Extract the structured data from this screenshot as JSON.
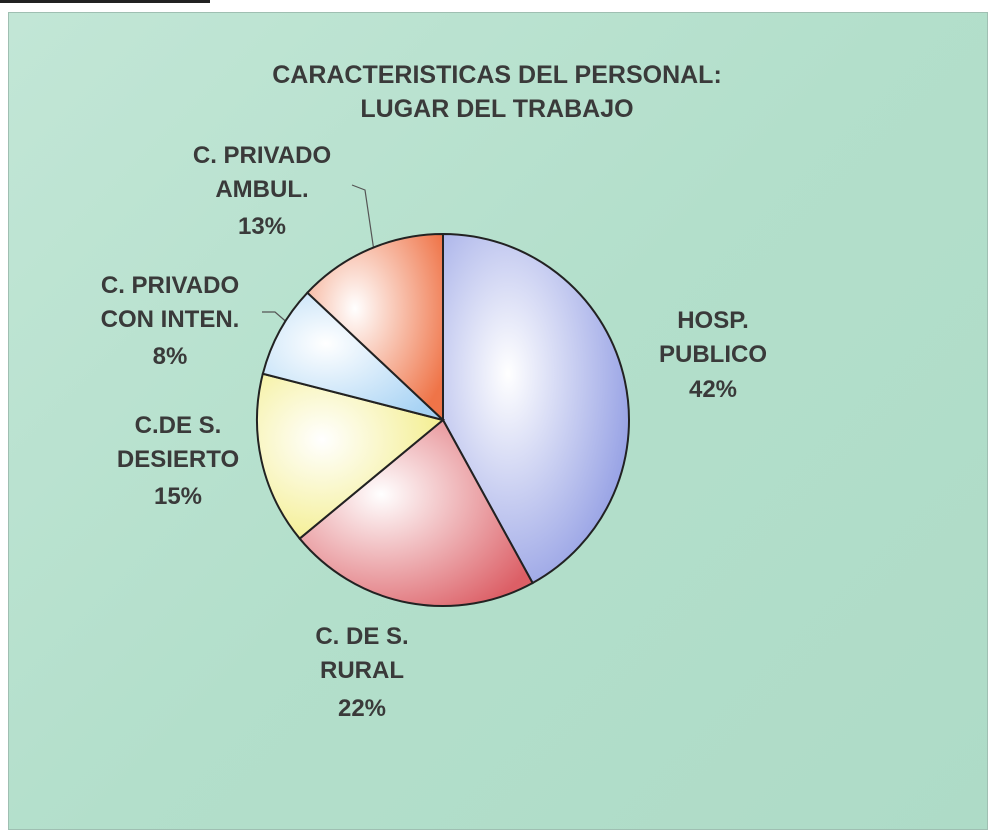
{
  "chart_data": {
    "type": "pie",
    "title": "CARACTERISTICAS DEL PERSONAL:\nLUGAR DEL TRABAJO",
    "categories": [
      "HOSP.\nPUBLICO",
      "C. DE S.\nRURAL",
      "C.DE S.\nDESIERTO",
      "C. PRIVADO\nCON INTEN.",
      "C. PRIVADO\nAMBUL."
    ],
    "values": [
      42,
      22,
      15,
      8,
      13
    ],
    "value_labels": [
      "42%",
      "22%",
      "15%",
      "8%",
      "13%"
    ],
    "colors": [
      "#8c98e2",
      "#dc5f66",
      "#f2ec80",
      "#a6d2f4",
      "#ef7448"
    ]
  }
}
